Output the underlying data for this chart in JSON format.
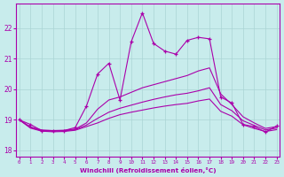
{
  "xlabel": "Windchill (Refroidissement éolien,°C)",
  "background_color": "#c8ecec",
  "grid_color": "#aad4d4",
  "line_color": "#aa00aa",
  "x_values": [
    0,
    1,
    2,
    3,
    4,
    5,
    6,
    7,
    8,
    9,
    10,
    11,
    12,
    13,
    14,
    15,
    16,
    17,
    18,
    19,
    20,
    21,
    22,
    23
  ],
  "ylim": [
    17.8,
    22.8
  ],
  "xlim": [
    -0.3,
    23.3
  ],
  "yticks": [
    18,
    19,
    20,
    21,
    22
  ],
  "series": [
    [
      19.0,
      18.85,
      18.65,
      18.65,
      18.65,
      18.75,
      19.45,
      20.5,
      20.85,
      19.65,
      21.55,
      22.5,
      21.5,
      21.25,
      21.15,
      21.6,
      21.7,
      21.65,
      19.75,
      19.55,
      18.85,
      18.78,
      18.6,
      18.8
    ],
    [
      19.0,
      18.77,
      18.67,
      18.65,
      18.66,
      18.7,
      18.9,
      19.35,
      19.65,
      19.75,
      19.9,
      20.05,
      20.15,
      20.25,
      20.35,
      20.45,
      20.6,
      20.7,
      19.85,
      19.5,
      19.1,
      18.9,
      18.72,
      18.78
    ],
    [
      19.0,
      18.75,
      18.65,
      18.63,
      18.64,
      18.68,
      18.83,
      19.05,
      19.25,
      19.38,
      19.48,
      19.58,
      19.67,
      19.75,
      19.82,
      19.87,
      19.95,
      20.05,
      19.5,
      19.3,
      18.97,
      18.82,
      18.67,
      18.73
    ],
    [
      19.0,
      18.73,
      18.63,
      18.61,
      18.62,
      18.66,
      18.78,
      18.9,
      19.05,
      19.17,
      19.25,
      19.32,
      19.39,
      19.45,
      19.5,
      19.54,
      19.62,
      19.68,
      19.28,
      19.12,
      18.84,
      18.72,
      18.62,
      18.68
    ]
  ]
}
